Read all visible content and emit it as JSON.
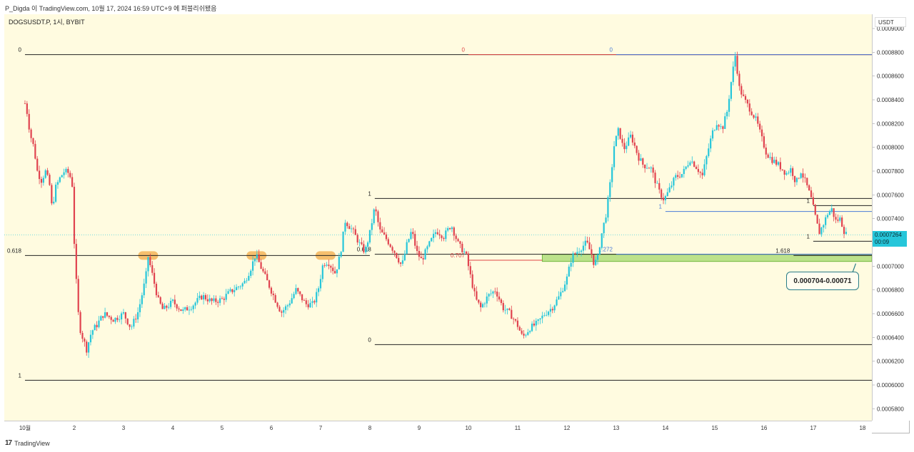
{
  "header": {
    "text": "P_Digda 이 TradingView.com, 10월 17, 2024 16:59 UTC+9 에 퍼블리쉬됐음"
  },
  "symbol": {
    "text": "DOGSUSDT.P, 1시, BYBIT"
  },
  "currency_button": "USDT",
  "price_tag": {
    "price": "0.0007264",
    "countdown": "00:09"
  },
  "annotation_box": "0.000704-0.00071",
  "footer": {
    "logo": "17",
    "brand": "TradingView"
  },
  "colors": {
    "background": "#fffbe0",
    "up": "#26c6da",
    "down": "#e0434f",
    "zone": "#a5d96f",
    "fib_red": "#e04646",
    "fib_blue": "#4a7bd8",
    "fib_black": "#222222"
  },
  "chart_data": {
    "type": "candlestick",
    "title": "DOGSUSDT.P, 1시, BYBIT",
    "y_axis_ticks": [
      "0.0009000",
      "0.0008800",
      "0.0008600",
      "0.0008400",
      "0.0008200",
      "0.0008000",
      "0.0007800",
      "0.0007600",
      "0.0007400",
      "0.0007200",
      "0.0007000",
      "0.0006800",
      "0.0006600",
      "0.0006400",
      "0.0006200",
      "0.0006000",
      "0.0005800"
    ],
    "x_axis_ticks": [
      "10월",
      "2",
      "3",
      "4",
      "5",
      "6",
      "7",
      "8",
      "9",
      "10",
      "11",
      "12",
      "13",
      "14",
      "15",
      "16",
      "17",
      "18"
    ],
    "ylim": [
      0.00057,
      0.000912
    ],
    "xlim": [
      0.58,
      18.19
    ],
    "close_points": [
      [
        1.0,
        0.000837
      ],
      [
        1.05,
        0.000828
      ],
      [
        1.1,
        0.000812
      ],
      [
        1.18,
        0.0008
      ],
      [
        1.25,
        0.00078
      ],
      [
        1.33,
        0.000772
      ],
      [
        1.42,
        0.00078
      ],
      [
        1.5,
        0.000768
      ],
      [
        1.55,
        0.000748
      ],
      [
        1.62,
        0.000766
      ],
      [
        1.72,
        0.000775
      ],
      [
        1.8,
        0.00078
      ],
      [
        1.9,
        0.000778
      ],
      [
        1.96,
        0.000768
      ],
      [
        2.0,
        0.00072
      ],
      [
        2.05,
        0.00068
      ],
      [
        2.1,
        0.00065
      ],
      [
        2.17,
        0.00064
      ],
      [
        2.25,
        0.00063
      ],
      [
        2.35,
        0.000645
      ],
      [
        2.45,
        0.00065
      ],
      [
        2.6,
        0.00066
      ],
      [
        2.8,
        0.000655
      ],
      [
        3.0,
        0.00066
      ],
      [
        3.15,
        0.000648
      ],
      [
        3.3,
        0.000662
      ],
      [
        3.45,
        0.00069
      ],
      [
        3.5,
        0.000708
      ],
      [
        3.6,
        0.00069
      ],
      [
        3.7,
        0.000672
      ],
      [
        3.8,
        0.000663
      ],
      [
        4.0,
        0.00067
      ],
      [
        4.2,
        0.000662
      ],
      [
        4.4,
        0.000667
      ],
      [
        4.6,
        0.000675
      ],
      [
        4.8,
        0.00067
      ],
      [
        5.0,
        0.000672
      ],
      [
        5.15,
        0.000678
      ],
      [
        5.3,
        0.000682
      ],
      [
        5.45,
        0.000686
      ],
      [
        5.6,
        0.0007
      ],
      [
        5.68,
        0.00071
      ],
      [
        5.8,
        0.000698
      ],
      [
        5.95,
        0.000684
      ],
      [
        6.1,
        0.00067
      ],
      [
        6.2,
        0.000661
      ],
      [
        6.35,
        0.000668
      ],
      [
        6.5,
        0.00068
      ],
      [
        6.7,
        0.000668
      ],
      [
        6.85,
        0.000668
      ],
      [
        6.95,
        0.00068
      ],
      [
        7.05,
        0.000702
      ],
      [
        7.15,
        0.000704
      ],
      [
        7.3,
        0.000694
      ],
      [
        7.4,
        0.00071
      ],
      [
        7.5,
        0.000738
      ],
      [
        7.65,
        0.00073
      ],
      [
        7.8,
        0.000718
      ],
      [
        7.9,
        0.000712
      ],
      [
        8.0,
        0.000728
      ],
      [
        8.1,
        0.00075
      ],
      [
        8.2,
        0.00073
      ],
      [
        8.35,
        0.000722
      ],
      [
        8.5,
        0.000712
      ],
      [
        8.65,
        0.0007
      ],
      [
        8.75,
        0.000718
      ],
      [
        8.85,
        0.00073
      ],
      [
        8.95,
        0.000712
      ],
      [
        9.05,
        0.000705
      ],
      [
        9.2,
        0.000718
      ],
      [
        9.35,
        0.00073
      ],
      [
        9.5,
        0.000725
      ],
      [
        9.65,
        0.000735
      ],
      [
        9.8,
        0.000718
      ],
      [
        9.95,
        0.00071
      ],
      [
        10.05,
        0.00069
      ],
      [
        10.15,
        0.000672
      ],
      [
        10.25,
        0.000665
      ],
      [
        10.4,
        0.000675
      ],
      [
        10.55,
        0.00068
      ],
      [
        10.7,
        0.000665
      ],
      [
        10.85,
        0.00066
      ],
      [
        11.0,
        0.00065
      ],
      [
        11.1,
        0.00064
      ],
      [
        11.25,
        0.000648
      ],
      [
        11.4,
        0.000652
      ],
      [
        11.55,
        0.00066
      ],
      [
        11.7,
        0.000665
      ],
      [
        11.85,
        0.000675
      ],
      [
        12.0,
        0.00069
      ],
      [
        12.1,
        0.000708
      ],
      [
        12.2,
        0.000712
      ],
      [
        12.3,
        0.000716
      ],
      [
        12.4,
        0.00072
      ],
      [
        12.5,
        0.00071
      ],
      [
        12.55,
        0.000702
      ],
      [
        12.62,
        0.000706
      ],
      [
        12.7,
        0.000726
      ],
      [
        12.8,
        0.000745
      ],
      [
        12.88,
        0.00077
      ],
      [
        12.96,
        0.000802
      ],
      [
        13.05,
        0.000815
      ],
      [
        13.15,
        0.000798
      ],
      [
        13.3,
        0.00081
      ],
      [
        13.45,
        0.000792
      ],
      [
        13.55,
        0.000785
      ],
      [
        13.7,
        0.000783
      ],
      [
        13.8,
        0.000771
      ],
      [
        13.88,
        0.000762
      ],
      [
        13.97,
        0.000756
      ],
      [
        14.05,
        0.000762
      ],
      [
        14.2,
        0.000775
      ],
      [
        14.35,
        0.000778
      ],
      [
        14.5,
        0.00079
      ],
      [
        14.6,
        0.000785
      ],
      [
        14.75,
        0.000776
      ],
      [
        14.85,
        0.000795
      ],
      [
        14.95,
        0.000812
      ],
      [
        15.05,
        0.000822
      ],
      [
        15.15,
        0.000815
      ],
      [
        15.25,
        0.00083
      ],
      [
        15.35,
        0.00086
      ],
      [
        15.42,
        0.000878
      ],
      [
        15.5,
        0.00085
      ],
      [
        15.6,
        0.00084
      ],
      [
        15.72,
        0.000832
      ],
      [
        15.85,
        0.000822
      ],
      [
        15.95,
        0.000808
      ],
      [
        16.05,
        0.000795
      ],
      [
        16.15,
        0.00079
      ],
      [
        16.3,
        0.000785
      ],
      [
        16.45,
        0.000778
      ],
      [
        16.55,
        0.000782
      ],
      [
        16.65,
        0.00077
      ],
      [
        16.75,
        0.00078
      ],
      [
        16.85,
        0.00077
      ],
      [
        16.95,
        0.000758
      ],
      [
        17.05,
        0.00074
      ],
      [
        17.12,
        0.000728
      ],
      [
        17.2,
        0.000735
      ],
      [
        17.3,
        0.000745
      ],
      [
        17.38,
        0.000748
      ],
      [
        17.45,
        0.000738
      ],
      [
        17.55,
        0.00074
      ],
      [
        17.62,
        0.00073
      ],
      [
        17.68,
        0.000726
      ]
    ],
    "fib_levels": [
      {
        "label": "0",
        "price": 0.000878,
        "x_start": 1.0,
        "x_end": 18.19,
        "color": "black"
      },
      {
        "label": "0.618",
        "price": 0.000709,
        "x_start": 1.0,
        "x_end": 8.0,
        "color": "black"
      },
      {
        "label": "1",
        "price": 0.000604,
        "x_start": 1.0,
        "x_end": 18.19,
        "color": "black"
      },
      {
        "label": "1",
        "price": 0.000757,
        "x_start": 8.1,
        "x_end": 18.19,
        "color": "black"
      },
      {
        "label": "0.618",
        "price": 0.00071,
        "x_start": 8.1,
        "x_end": 18.19,
        "color": "black"
      },
      {
        "label": "0",
        "price": 0.000634,
        "x_start": 8.1,
        "x_end": 18.19,
        "color": "black"
      },
      {
        "label": "0",
        "price": 0.000878,
        "x_start": 10.0,
        "x_end": 18.19,
        "color": "red"
      },
      {
        "label": "0.707",
        "price": 0.000705,
        "x_start": 10.0,
        "x_end": 11.5,
        "color": "red"
      },
      {
        "label": "0",
        "price": 0.000878,
        "x_start": 13.0,
        "x_end": 18.19,
        "color": "blue"
      },
      {
        "label": "1",
        "price": 0.000746,
        "x_start": 14.0,
        "x_end": 18.19,
        "color": "blue"
      },
      {
        "label": "1.272",
        "price": 0.00071,
        "x_start": 13.0,
        "x_end": 18.19,
        "color": "blue"
      },
      {
        "label": "1",
        "price": 0.000751,
        "x_start": 17.0,
        "x_end": 18.19,
        "color": "black"
      },
      {
        "label": "1",
        "price": 0.000721,
        "x_start": 17.0,
        "x_end": 18.19,
        "color": "black"
      },
      {
        "label": "1.618",
        "price": 0.000709,
        "x_start": 16.6,
        "x_end": 18.19,
        "color": "black"
      }
    ],
    "support_zone": {
      "low": 0.000704,
      "high": 0.00071,
      "x_start": 11.5,
      "x_end": 18.19
    },
    "touch_markers_x": [
      3.5,
      5.7,
      7.1
    ],
    "current_price": 0.0007264
  }
}
